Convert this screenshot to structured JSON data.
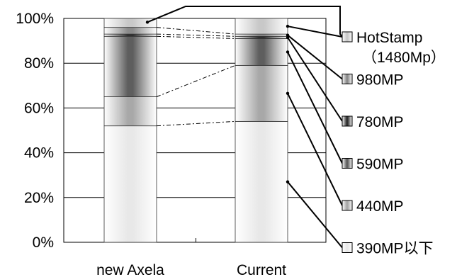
{
  "chart_data": {
    "type": "bar",
    "stacked": true,
    "percent": true,
    "categories": [
      "new Axela",
      "Current"
    ],
    "series": [
      {
        "name": "390MP以下",
        "values": [
          52,
          54
        ],
        "color": "#e8e8e8"
      },
      {
        "name": "440MP",
        "values": [
          13,
          25
        ],
        "color": "#a8a8a8"
      },
      {
        "name": "590MP",
        "values": [
          27,
          12
        ],
        "color": "#5e5e5e"
      },
      {
        "name": "780MP",
        "values": [
          1,
          1
        ],
        "color": "#303030"
      },
      {
        "name": "980MP",
        "values": [
          3,
          1
        ],
        "color": "#8a8a8a"
      },
      {
        "name": "HotStamp",
        "values": [
          4,
          7
        ],
        "color": "#c8c8c8"
      }
    ],
    "legend_extra": {
      "HotStamp": "（1480Mp）"
    },
    "yticks": [
      "0%",
      "20%",
      "40%",
      "60%",
      "80%",
      "100%"
    ],
    "ylim": [
      0,
      100
    ],
    "grid": true,
    "legend_position": "right"
  }
}
